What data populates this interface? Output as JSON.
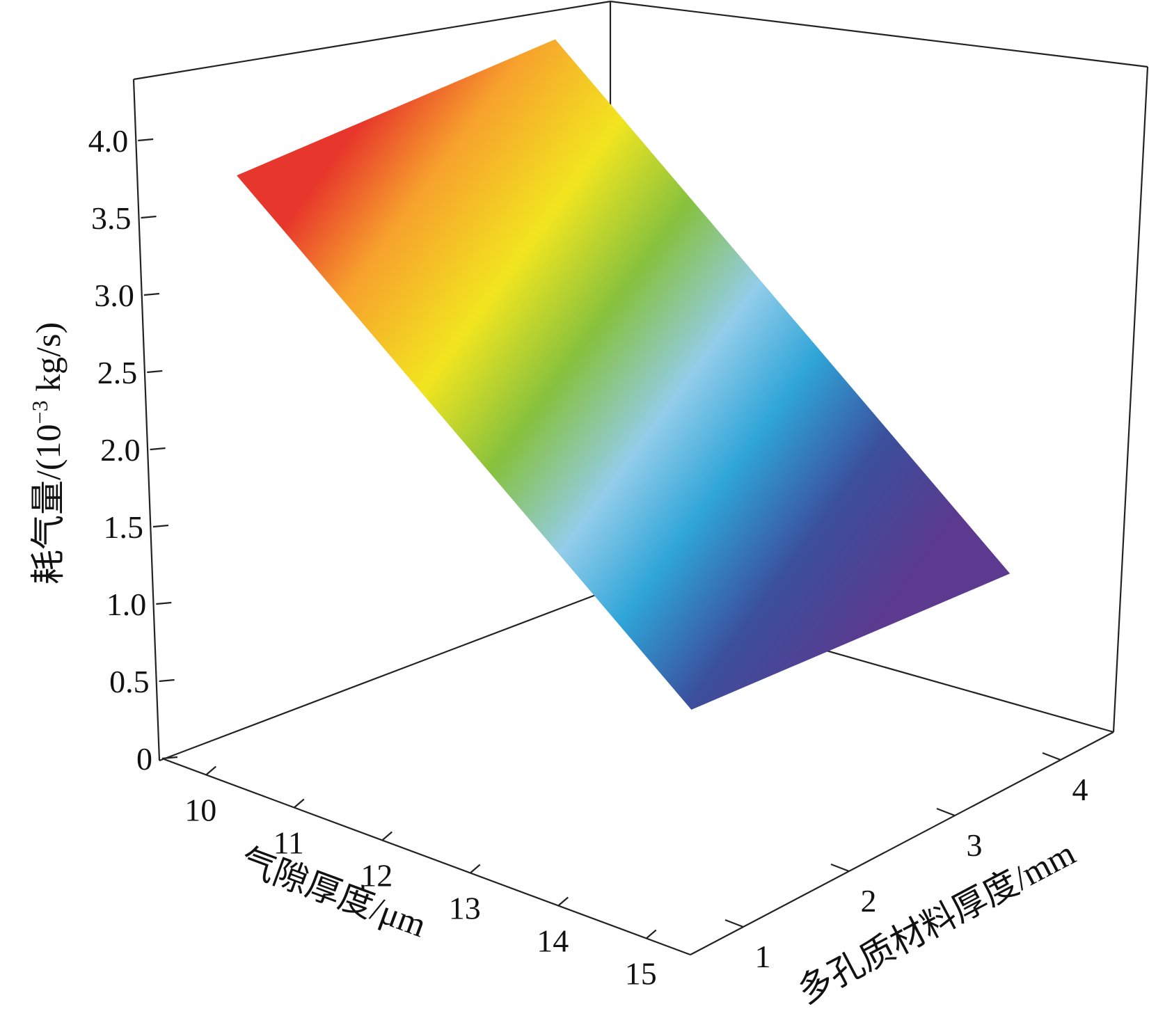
{
  "chart_data": {
    "type": "surface3d",
    "title": "",
    "xlabel": "气隙厚度/μm",
    "ylabel": "多孔质材料厚度/mm",
    "zlabel_main": "耗气量/(10",
    "zlabel_sup": "−3",
    "zlabel_tail": " kg/s)",
    "x_ticks": [
      "10",
      "11",
      "12",
      "13",
      "14",
      "15"
    ],
    "y_ticks": [
      "1",
      "2",
      "3",
      "4"
    ],
    "z_ticks": [
      "0",
      "0.5",
      "1.0",
      "1.5",
      "2.0",
      "2.5",
      "3.0",
      "3.5",
      "4.0"
    ],
    "xlim": [
      9.5,
      15.5
    ],
    "ylim": [
      0.5,
      4.5
    ],
    "zlim": [
      0,
      4.25
    ],
    "surface_corners": [
      {
        "x": 10,
        "y": 1,
        "z": 3.7
      },
      {
        "x": 15,
        "y": 1,
        "z": 1.3
      },
      {
        "x": 15,
        "y": 4,
        "z": 1.1
      },
      {
        "x": 10,
        "y": 4,
        "z": 3.5
      }
    ],
    "colormap": [
      "#5b3a8f",
      "#3b4f9c",
      "#2fa5d8",
      "#93cdea",
      "#86c13e",
      "#f2e51f",
      "#f7a12d",
      "#e7362b"
    ]
  }
}
